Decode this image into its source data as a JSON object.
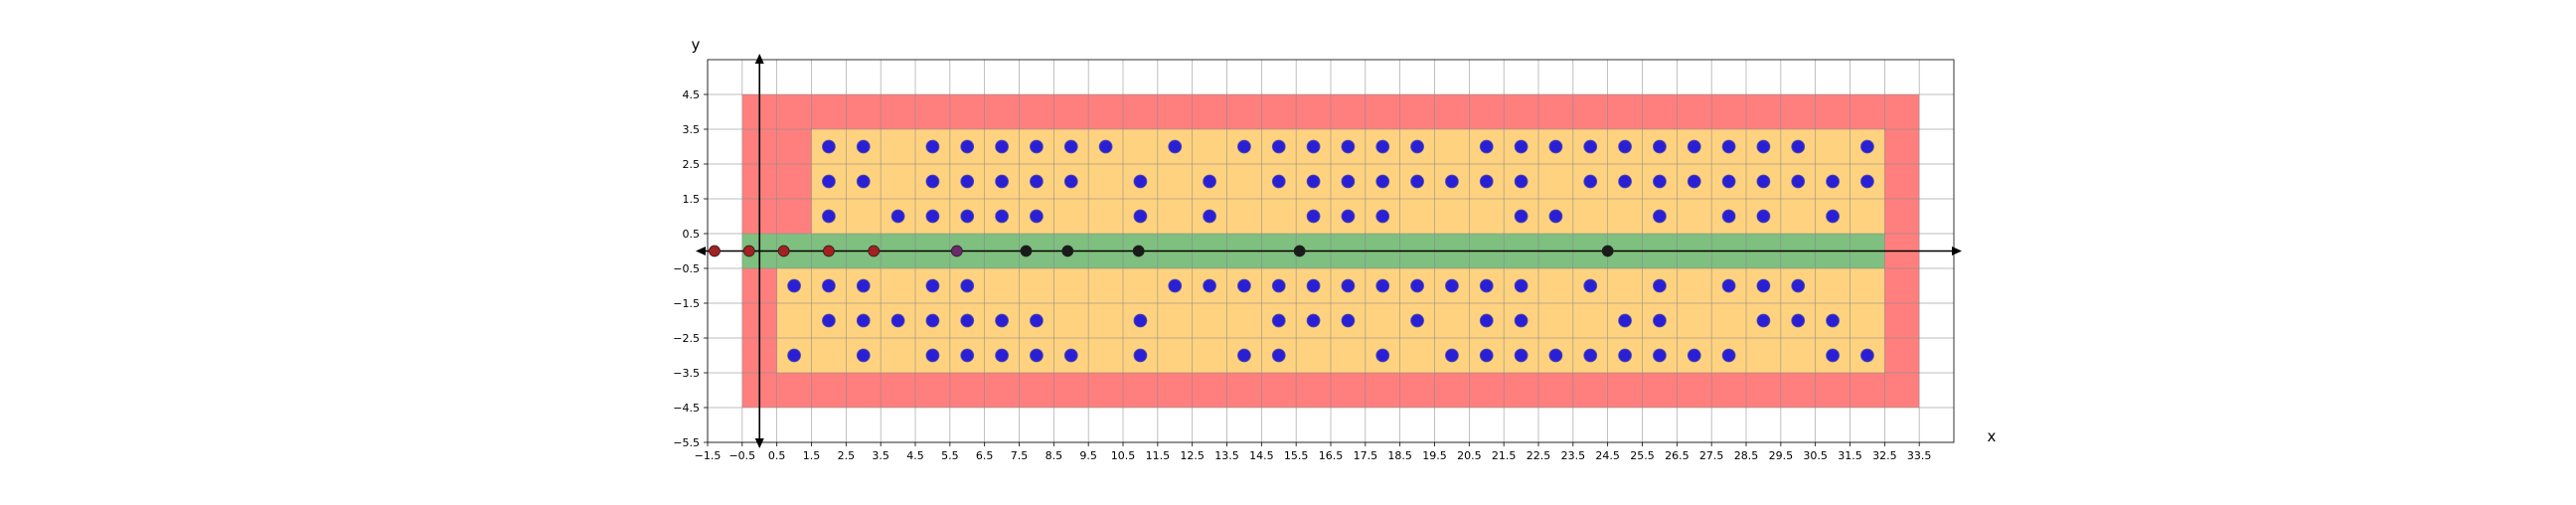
{
  "chart_data": {
    "type": "scatter",
    "title": "",
    "xlabel": "x",
    "ylabel": "y",
    "xlim": [
      -1.5,
      34.5
    ],
    "ylim": [
      -5.5,
      5.5
    ],
    "x_ticks": [
      -1.5,
      -0.5,
      0.5,
      1.5,
      2.5,
      3.5,
      4.5,
      5.5,
      6.5,
      7.5,
      8.5,
      9.5,
      10.5,
      11.5,
      12.5,
      13.5,
      14.5,
      15.5,
      16.5,
      17.5,
      18.5,
      19.5,
      20.5,
      21.5,
      22.5,
      23.5,
      24.5,
      25.5,
      26.5,
      27.5,
      28.5,
      29.5,
      30.5,
      31.5,
      32.5,
      33.5
    ],
    "y_ticks": [
      -5.5,
      -4.5,
      -3.5,
      -2.5,
      -1.5,
      -0.5,
      0.5,
      1.5,
      2.5,
      3.5,
      4.5
    ],
    "grid": true,
    "colors": {
      "red_region": "#ff7f7f",
      "orange_region": "#ffd27f",
      "green_region": "#7fbf7f",
      "blue_point": "#2b1fd6",
      "blue_edge": "#5a5a9a",
      "red_point": "#a52020",
      "black_point": "#1a1a1a",
      "purple_point": "#6a2a6a",
      "grid": "#888888",
      "axis": "#000000"
    },
    "regions": [
      {
        "name": "red",
        "x0": -0.5,
        "x1": 33.5,
        "y0": -4.5,
        "y1": 4.5,
        "color": "#ff7f7f"
      },
      {
        "name": "orange-upper",
        "x0": 1.5,
        "x1": 32.5,
        "y0": 0.5,
        "y1": 3.5,
        "color": "#ffd27f"
      },
      {
        "name": "orange-lower",
        "x0": 0.5,
        "x1": 32.5,
        "y0": -3.5,
        "y1": -0.5,
        "color": "#ffd27f"
      },
      {
        "name": "green",
        "x0": -0.5,
        "x1": 32.5,
        "y0": -0.5,
        "y1": 0.5,
        "color": "#7fbf7f"
      }
    ],
    "series": [
      {
        "color": "#2b1fd6",
        "points": [
          [
            2,
            3
          ],
          [
            3,
            3
          ],
          [
            5,
            3
          ],
          [
            6,
            3
          ],
          [
            7,
            3
          ],
          [
            8,
            3
          ],
          [
            9,
            3
          ],
          [
            10,
            3
          ],
          [
            12,
            3
          ],
          [
            14,
            3
          ],
          [
            15,
            3
          ],
          [
            16,
            3
          ],
          [
            17,
            3
          ],
          [
            18,
            3
          ],
          [
            19,
            3
          ],
          [
            21,
            3
          ],
          [
            22,
            3
          ],
          [
            23,
            3
          ],
          [
            24,
            3
          ],
          [
            25,
            3
          ],
          [
            26,
            3
          ],
          [
            27,
            3
          ],
          [
            28,
            3
          ],
          [
            29,
            3
          ],
          [
            30,
            3
          ],
          [
            32,
            3
          ],
          [
            2,
            2
          ],
          [
            3,
            2
          ],
          [
            5,
            2
          ],
          [
            6,
            2
          ],
          [
            7,
            2
          ],
          [
            8,
            2
          ],
          [
            9,
            2
          ],
          [
            11,
            2
          ],
          [
            13,
            2
          ],
          [
            15,
            2
          ],
          [
            16,
            2
          ],
          [
            17,
            2
          ],
          [
            18,
            2
          ],
          [
            19,
            2
          ],
          [
            20,
            2
          ],
          [
            21,
            2
          ],
          [
            22,
            2
          ],
          [
            24,
            2
          ],
          [
            25,
            2
          ],
          [
            26,
            2
          ],
          [
            27,
            2
          ],
          [
            28,
            2
          ],
          [
            29,
            2
          ],
          [
            30,
            2
          ],
          [
            31,
            2
          ],
          [
            32,
            2
          ],
          [
            2,
            1
          ],
          [
            4,
            1
          ],
          [
            5,
            1
          ],
          [
            6,
            1
          ],
          [
            7,
            1
          ],
          [
            8,
            1
          ],
          [
            11,
            1
          ],
          [
            13,
            1
          ],
          [
            16,
            1
          ],
          [
            17,
            1
          ],
          [
            18,
            1
          ],
          [
            22,
            1
          ],
          [
            23,
            1
          ],
          [
            26,
            1
          ],
          [
            28,
            1
          ],
          [
            29,
            1
          ],
          [
            31,
            1
          ],
          [
            1,
            -1
          ],
          [
            2,
            -1
          ],
          [
            3,
            -1
          ],
          [
            5,
            -1
          ],
          [
            6,
            -1
          ],
          [
            12,
            -1
          ],
          [
            13,
            -1
          ],
          [
            14,
            -1
          ],
          [
            15,
            -1
          ],
          [
            16,
            -1
          ],
          [
            17,
            -1
          ],
          [
            18,
            -1
          ],
          [
            19,
            -1
          ],
          [
            20,
            -1
          ],
          [
            21,
            -1
          ],
          [
            22,
            -1
          ],
          [
            24,
            -1
          ],
          [
            26,
            -1
          ],
          [
            28,
            -1
          ],
          [
            29,
            -1
          ],
          [
            30,
            -1
          ],
          [
            2,
            -2
          ],
          [
            3,
            -2
          ],
          [
            4,
            -2
          ],
          [
            5,
            -2
          ],
          [
            6,
            -2
          ],
          [
            7,
            -2
          ],
          [
            8,
            -2
          ],
          [
            11,
            -2
          ],
          [
            15,
            -2
          ],
          [
            16,
            -2
          ],
          [
            17,
            -2
          ],
          [
            19,
            -2
          ],
          [
            21,
            -2
          ],
          [
            22,
            -2
          ],
          [
            25,
            -2
          ],
          [
            26,
            -2
          ],
          [
            29,
            -2
          ],
          [
            30,
            -2
          ],
          [
            31,
            -2
          ],
          [
            1,
            -3
          ],
          [
            3,
            -3
          ],
          [
            5,
            -3
          ],
          [
            6,
            -3
          ],
          [
            7,
            -3
          ],
          [
            8,
            -3
          ],
          [
            9,
            -3
          ],
          [
            11,
            -3
          ],
          [
            14,
            -3
          ],
          [
            15,
            -3
          ],
          [
            18,
            -3
          ],
          [
            20,
            -3
          ],
          [
            21,
            -3
          ],
          [
            22,
            -3
          ],
          [
            23,
            -3
          ],
          [
            24,
            -3
          ],
          [
            25,
            -3
          ],
          [
            26,
            -3
          ],
          [
            27,
            -3
          ],
          [
            28,
            -3
          ],
          [
            31,
            -3
          ],
          [
            32,
            -3
          ]
        ]
      },
      {
        "color": "#a52020",
        "points": [
          [
            -1.3,
            0
          ],
          [
            -0.3,
            0
          ],
          [
            0.7,
            0
          ],
          [
            2.0,
            0
          ],
          [
            3.3,
            0
          ]
        ]
      },
      {
        "color": "#6a2a6a",
        "points": [
          [
            5.7,
            0
          ]
        ]
      },
      {
        "color": "#1a1a1a",
        "points": [
          [
            7.7,
            0
          ],
          [
            8.9,
            0
          ],
          [
            10.95,
            0
          ],
          [
            15.6,
            0
          ],
          [
            24.5,
            0
          ]
        ]
      }
    ]
  }
}
